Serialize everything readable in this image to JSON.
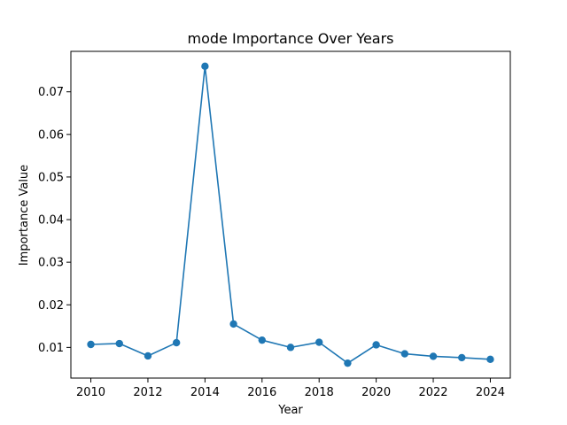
{
  "chart_data": {
    "type": "line",
    "title": "mode Importance Over Years",
    "xlabel": "Year",
    "ylabel": "Importance Value",
    "x": [
      2010,
      2011,
      2012,
      2013,
      2014,
      2015,
      2016,
      2017,
      2018,
      2019,
      2020,
      2021,
      2022,
      2023,
      2024
    ],
    "series": [
      {
        "values": [
          0.0107,
          0.0109,
          0.008,
          0.0111,
          0.076,
          0.0155,
          0.0117,
          0.01,
          0.0112,
          0.0063,
          0.0106,
          0.0085,
          0.0079,
          0.0076,
          0.0072
        ],
        "color": "#1f77b4",
        "marker": "circle"
      }
    ],
    "xticks": [
      "2010",
      "2012",
      "2014",
      "2016",
      "2018",
      "2020",
      "2022",
      "2024"
    ],
    "yticks": [
      "0.01",
      "0.02",
      "0.03",
      "0.04",
      "0.05",
      "0.06",
      "0.07"
    ],
    "xlim": [
      2009.3,
      2024.7
    ],
    "ylim": [
      0.0028,
      0.0795
    ],
    "grid": false,
    "legend": "none"
  }
}
